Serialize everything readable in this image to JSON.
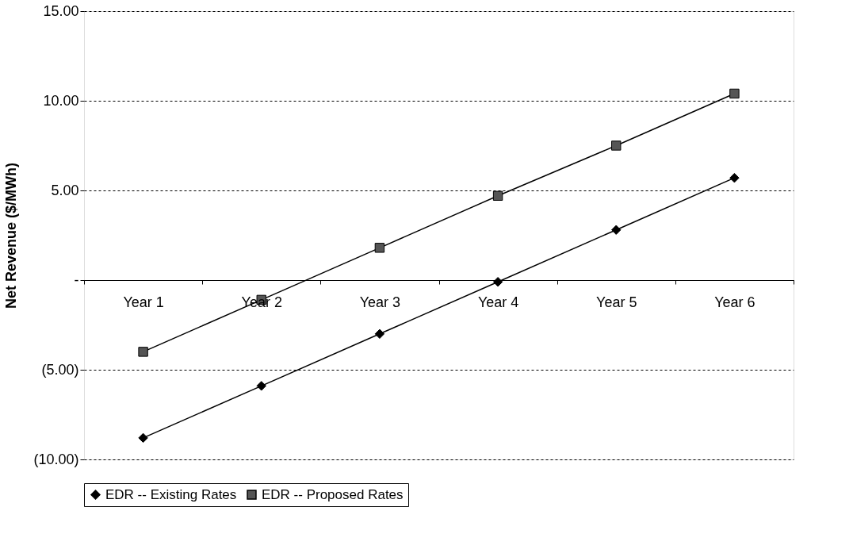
{
  "chart_data": {
    "type": "line",
    "ylabel": "Net Revenue ($/MWh)",
    "categories": [
      "Year 1",
      "Year 2",
      "Year 3",
      "Year 4",
      "Year 5",
      "Year 6"
    ],
    "series": [
      {
        "name": "EDR -- Existing Rates",
        "color": "#000000",
        "marker": "diamond",
        "values": [
          -8.8,
          -5.9,
          -3.0,
          -0.1,
          2.8,
          5.7
        ]
      },
      {
        "name": "EDR -- Proposed Rates",
        "color": "#555555",
        "marker": "square",
        "values": [
          -4.0,
          -1.1,
          1.8,
          4.7,
          7.5,
          10.4
        ]
      }
    ],
    "ylim": [
      -10,
      15
    ],
    "yticks": [
      {
        "value": -10,
        "label": "(10.00)"
      },
      {
        "value": -5,
        "label": "(5.00)"
      },
      {
        "value": 0,
        "label": "-"
      },
      {
        "value": 5,
        "label": "5.00"
      },
      {
        "value": 10,
        "label": "10.00"
      },
      {
        "value": 15,
        "label": "15.00"
      }
    ],
    "grid": "y",
    "legend": "bottom",
    "line_style": "solid"
  }
}
